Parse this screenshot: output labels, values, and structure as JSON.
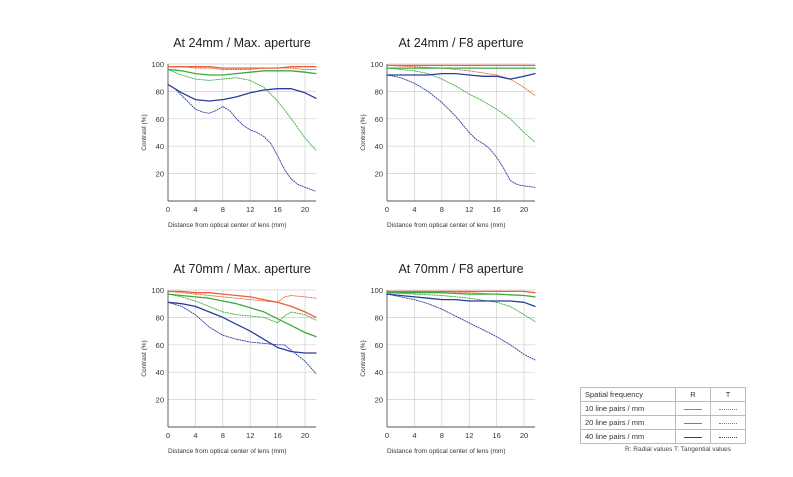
{
  "colors": {
    "10 line pairs / mm": "#e8603c",
    "20 line pairs / mm": "#3daa3d",
    "40 line pairs / mm": "#2a3d9e"
  },
  "legend": {
    "header": "Spatial frequency",
    "r_header": "R",
    "t_header": "T",
    "rows": [
      "10 line pairs / mm",
      "20 line pairs / mm",
      "40 line pairs / mm"
    ],
    "note": "R: Radial values  T: Tangential values"
  },
  "chart_data": [
    {
      "type": "line",
      "title": "At 24mm / Max. aperture",
      "xlabel": "Distance from optical center of lens (mm)",
      "ylabel": "Contrast (%)",
      "xlim": [
        0,
        21.6
      ],
      "ylim": [
        0,
        100
      ],
      "xticks": [
        0,
        4,
        8,
        12,
        16,
        20
      ],
      "yticks": [
        20,
        40,
        60,
        80,
        100
      ],
      "series": [
        {
          "frequency": "10 line pairs / mm",
          "kind": "R",
          "x": [
            0,
            2,
            4,
            6,
            8,
            10,
            12,
            14,
            16,
            18,
            20,
            21.6
          ],
          "y": [
            98,
            98,
            98,
            98,
            97,
            97,
            97,
            97,
            97,
            98,
            98,
            98
          ]
        },
        {
          "frequency": "10 line pairs / mm",
          "kind": "T",
          "x": [
            0,
            2,
            4,
            6,
            8,
            10,
            12,
            14,
            16,
            18,
            20,
            21.6
          ],
          "y": [
            98,
            98,
            97,
            97,
            96,
            96,
            96,
            97,
            97,
            97,
            96,
            96
          ]
        },
        {
          "frequency": "20 line pairs / mm",
          "kind": "R",
          "x": [
            0,
            2,
            4,
            6,
            8,
            10,
            12,
            14,
            16,
            18,
            20,
            21.6
          ],
          "y": [
            96,
            95,
            93,
            92,
            92,
            93,
            94,
            95,
            95,
            95,
            94,
            93
          ]
        },
        {
          "frequency": "20 line pairs / mm",
          "kind": "T",
          "x": [
            0,
            2,
            4,
            6,
            8,
            10,
            12,
            14,
            16,
            18,
            20,
            21.6
          ],
          "y": [
            96,
            92,
            89,
            88,
            89,
            90,
            88,
            83,
            73,
            60,
            46,
            37
          ]
        },
        {
          "frequency": "40 line pairs / mm",
          "kind": "R",
          "x": [
            0,
            2,
            4,
            6,
            8,
            10,
            12,
            14,
            16,
            18,
            20,
            21.6
          ],
          "y": [
            85,
            79,
            74,
            73,
            74,
            76,
            79,
            81,
            82,
            82,
            79,
            75
          ]
        },
        {
          "frequency": "40 line pairs / mm",
          "kind": "T",
          "x": [
            0,
            1,
            2,
            3,
            4,
            5,
            6,
            7,
            8,
            9,
            10,
            11,
            12,
            13,
            14,
            15,
            16,
            17,
            18,
            19,
            20,
            21.6
          ],
          "y": [
            85,
            82,
            77,
            72,
            67,
            65,
            64,
            66,
            69,
            66,
            60,
            55,
            52,
            50,
            47,
            42,
            33,
            23,
            16,
            12,
            10,
            7
          ]
        }
      ]
    },
    {
      "type": "line",
      "title": "At 24mm / F8 aperture",
      "xlabel": "Distance from optical center of lens (mm)",
      "ylabel": "Contrast (%)",
      "xlim": [
        0,
        21.6
      ],
      "ylim": [
        0,
        100
      ],
      "xticks": [
        0,
        4,
        8,
        12,
        16,
        20
      ],
      "yticks": [
        20,
        40,
        60,
        80,
        100
      ],
      "series": [
        {
          "frequency": "10 line pairs / mm",
          "kind": "R",
          "x": [
            0,
            4,
            8,
            12,
            16,
            20,
            21.6
          ],
          "y": [
            99,
            99,
            99,
            99,
            99,
            99,
            99
          ]
        },
        {
          "frequency": "10 line pairs / mm",
          "kind": "T",
          "x": [
            0,
            4,
            8,
            12,
            16,
            18,
            20,
            21.6
          ],
          "y": [
            99,
            98,
            97,
            95,
            92,
            89,
            83,
            77
          ]
        },
        {
          "frequency": "20 line pairs / mm",
          "kind": "R",
          "x": [
            0,
            4,
            8,
            12,
            16,
            20,
            21.6
          ],
          "y": [
            97,
            97,
            97,
            97,
            97,
            97,
            97
          ]
        },
        {
          "frequency": "20 line pairs / mm",
          "kind": "T",
          "x": [
            0,
            2,
            4,
            6,
            8,
            10,
            12,
            14,
            16,
            18,
            20,
            21.6
          ],
          "y": [
            97,
            96,
            95,
            93,
            89,
            84,
            78,
            73,
            67,
            60,
            50,
            43
          ]
        },
        {
          "frequency": "40 line pairs / mm",
          "kind": "R",
          "x": [
            0,
            2,
            4,
            6,
            8,
            10,
            12,
            14,
            16,
            18,
            20,
            21.6
          ],
          "y": [
            92,
            92,
            92,
            92,
            93,
            93,
            92,
            91,
            91,
            89,
            91,
            93
          ]
        },
        {
          "frequency": "40 line pairs / mm",
          "kind": "T",
          "x": [
            0,
            2,
            4,
            6,
            8,
            9,
            10,
            11,
            12,
            13,
            14,
            15,
            16,
            17,
            18,
            19,
            20,
            21.6
          ],
          "y": [
            92,
            90,
            86,
            80,
            72,
            67,
            62,
            56,
            50,
            45,
            42,
            38,
            32,
            24,
            15,
            12,
            11,
            10
          ]
        }
      ]
    },
    {
      "type": "line",
      "title": "At 70mm / Max. aperture",
      "xlabel": "Distance from optical center of lens (mm)",
      "ylabel": "Contrast (%)",
      "xlim": [
        0,
        21.6
      ],
      "ylim": [
        0,
        100
      ],
      "xticks": [
        0,
        4,
        8,
        12,
        16,
        20
      ],
      "yticks": [
        20,
        40,
        60,
        80,
        100
      ],
      "series": [
        {
          "frequency": "10 line pairs / mm",
          "kind": "R",
          "x": [
            0,
            2,
            4,
            6,
            8,
            10,
            12,
            14,
            16,
            18,
            20,
            21.6
          ],
          "y": [
            99,
            99,
            98,
            98,
            97,
            96,
            95,
            93,
            91,
            88,
            84,
            80
          ]
        },
        {
          "frequency": "10 line pairs / mm",
          "kind": "T",
          "x": [
            0,
            2,
            4,
            6,
            8,
            10,
            12,
            14,
            16,
            17,
            18,
            20,
            21.6
          ],
          "y": [
            99,
            98,
            97,
            96,
            95,
            94,
            93,
            92,
            91,
            95,
            96,
            95,
            94
          ]
        },
        {
          "frequency": "20 line pairs / mm",
          "kind": "R",
          "x": [
            0,
            2,
            4,
            6,
            8,
            10,
            12,
            14,
            16,
            18,
            20,
            21.6
          ],
          "y": [
            97,
            96,
            95,
            94,
            92,
            90,
            87,
            84,
            79,
            74,
            69,
            66
          ]
        },
        {
          "frequency": "20 line pairs / mm",
          "kind": "T",
          "x": [
            0,
            2,
            4,
            6,
            8,
            10,
            12,
            14,
            16,
            17,
            18,
            20,
            21.6
          ],
          "y": [
            97,
            95,
            92,
            88,
            84,
            82,
            81,
            80,
            76,
            81,
            84,
            82,
            78
          ]
        },
        {
          "frequency": "40 line pairs / mm",
          "kind": "R",
          "x": [
            0,
            2,
            4,
            6,
            8,
            10,
            12,
            14,
            16,
            18,
            20,
            21.6
          ],
          "y": [
            91,
            90,
            88,
            84,
            80,
            75,
            70,
            64,
            58,
            55,
            54,
            54
          ]
        },
        {
          "frequency": "40 line pairs / mm",
          "kind": "T",
          "x": [
            0,
            2,
            4,
            6,
            8,
            10,
            12,
            14,
            16,
            17,
            18,
            20,
            21.6
          ],
          "y": [
            91,
            88,
            82,
            73,
            67,
            64,
            62,
            61,
            60,
            60,
            56,
            48,
            39
          ]
        }
      ]
    },
    {
      "type": "line",
      "title": "At 70mm / F8 aperture",
      "xlabel": "Distance from optical center of lens (mm)",
      "ylabel": "Contrast (%)",
      "xlim": [
        0,
        21.6
      ],
      "ylim": [
        0,
        100
      ],
      "xticks": [
        0,
        4,
        8,
        12,
        16,
        20
      ],
      "yticks": [
        20,
        40,
        60,
        80,
        100
      ],
      "series": [
        {
          "frequency": "10 line pairs / mm",
          "kind": "R",
          "x": [
            0,
            4,
            8,
            12,
            16,
            20,
            21.6
          ],
          "y": [
            99,
            99,
            99,
            99,
            99,
            99,
            98
          ]
        },
        {
          "frequency": "10 line pairs / mm",
          "kind": "T",
          "x": [
            0,
            4,
            8,
            12,
            16,
            20,
            21.6
          ],
          "y": [
            99,
            99,
            98,
            98,
            97,
            96,
            95
          ]
        },
        {
          "frequency": "20 line pairs / mm",
          "kind": "R",
          "x": [
            0,
            4,
            8,
            12,
            16,
            20,
            21.6
          ],
          "y": [
            98,
            98,
            98,
            97,
            97,
            96,
            95
          ]
        },
        {
          "frequency": "20 line pairs / mm",
          "kind": "T",
          "x": [
            0,
            4,
            8,
            12,
            16,
            18,
            20,
            21.6
          ],
          "y": [
            98,
            97,
            96,
            94,
            91,
            88,
            82,
            77
          ]
        },
        {
          "frequency": "40 line pairs / mm",
          "kind": "R",
          "x": [
            0,
            2,
            4,
            6,
            8,
            10,
            12,
            14,
            16,
            18,
            20,
            21.6
          ],
          "y": [
            97,
            96,
            95,
            94,
            93,
            93,
            92,
            92,
            92,
            92,
            91,
            88
          ]
        },
        {
          "frequency": "40 line pairs / mm",
          "kind": "T",
          "x": [
            0,
            2,
            4,
            6,
            8,
            10,
            12,
            14,
            16,
            18,
            20,
            21.6
          ],
          "y": [
            97,
            95,
            93,
            90,
            86,
            81,
            76,
            71,
            66,
            60,
            53,
            49
          ]
        }
      ]
    }
  ]
}
